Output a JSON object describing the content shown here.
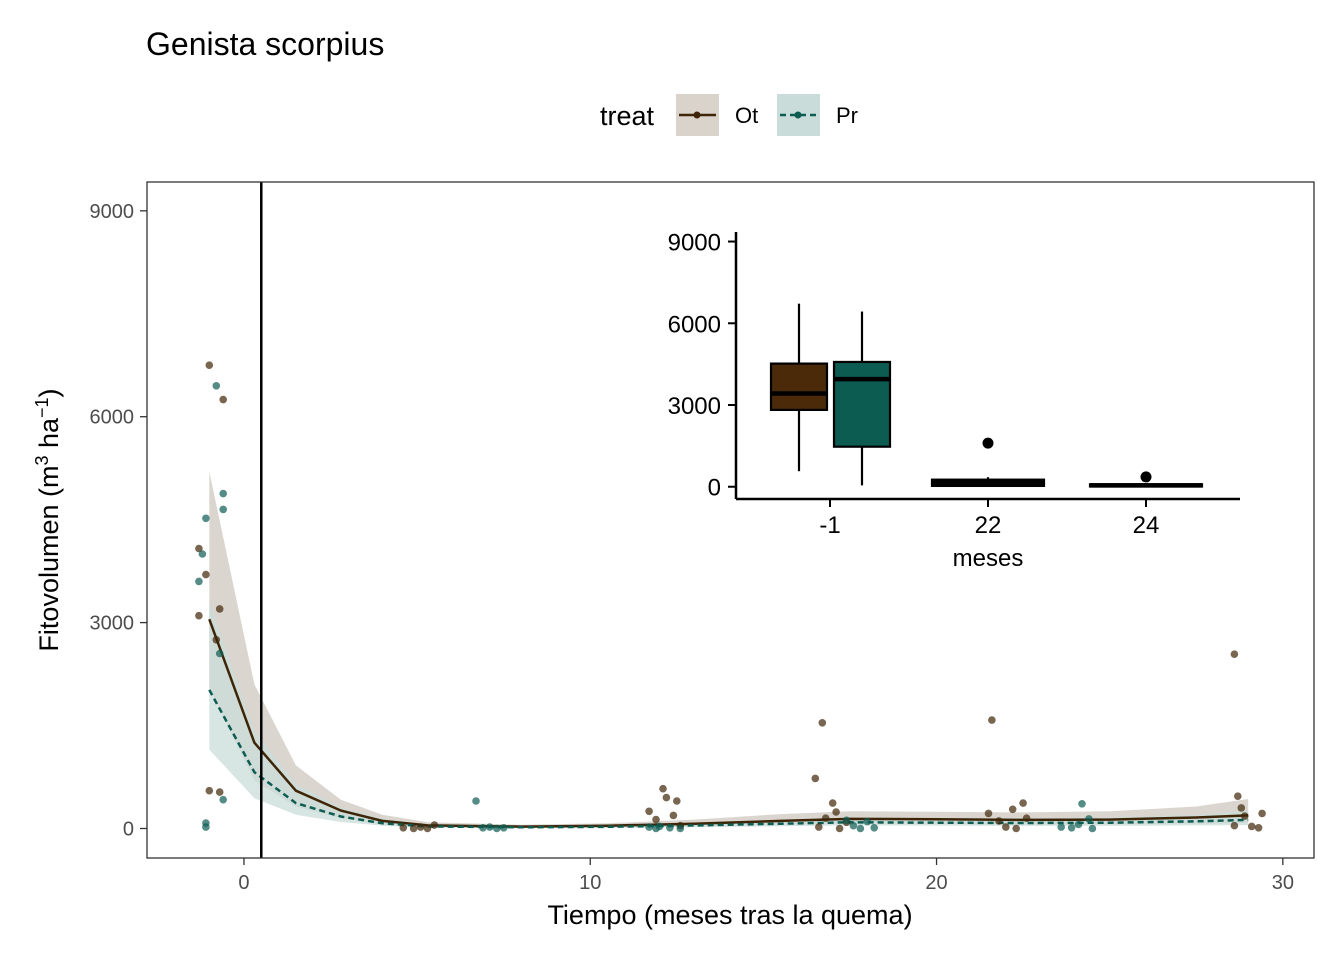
{
  "chart_data": {
    "type": "scatter",
    "title": "Genista scorpius",
    "xlabel": "Tiempo (meses tras la quema)",
    "ylabel_main": "Fitovolumen (m",
    "ylabel_sup1": "3",
    "ylabel_mid": " ha",
    "ylabel_sup2": "−1",
    "ylabel_end": ")",
    "xlim": [
      -2.8,
      30.9
    ],
    "ylim": [
      -430,
      9420
    ],
    "xticks": [
      0,
      10,
      20,
      30
    ],
    "yticks": [
      0,
      3000,
      6000,
      9000
    ],
    "reference_line_x": 0.5,
    "grid": false,
    "legend": {
      "position": "top",
      "title": "treat",
      "entries": [
        {
          "label": "Ot",
          "color": "#3f2507",
          "linestyle": "solid"
        },
        {
          "label": "Pr",
          "color": "#0d5c52",
          "linestyle": "dashed"
        }
      ]
    },
    "series": [
      {
        "name": "Ot",
        "color": "#3f2507",
        "fill": "#d9d3cc",
        "points": [
          {
            "x": -1.3,
            "y": 4080
          },
          {
            "x": -1.1,
            "y": 3700
          },
          {
            "x": -1.3,
            "y": 3100
          },
          {
            "x": -1.0,
            "y": 6750
          },
          {
            "x": -0.6,
            "y": 6250
          },
          {
            "x": -0.7,
            "y": 3200
          },
          {
            "x": -0.8,
            "y": 2750
          },
          {
            "x": -1.0,
            "y": 550
          },
          {
            "x": -0.7,
            "y": 530
          },
          {
            "x": 4.6,
            "y": 10
          },
          {
            "x": 4.9,
            "y": 0
          },
          {
            "x": 5.1,
            "y": 20
          },
          {
            "x": 5.3,
            "y": 0
          },
          {
            "x": 5.5,
            "y": 50
          },
          {
            "x": 11.7,
            "y": 250
          },
          {
            "x": 11.9,
            "y": 130
          },
          {
            "x": 12.1,
            "y": 580
          },
          {
            "x": 12.2,
            "y": 450
          },
          {
            "x": 12.5,
            "y": 400
          },
          {
            "x": 12.4,
            "y": 190
          },
          {
            "x": 12.6,
            "y": 40
          },
          {
            "x": 16.5,
            "y": 730
          },
          {
            "x": 16.7,
            "y": 1540
          },
          {
            "x": 16.6,
            "y": 20
          },
          {
            "x": 16.8,
            "y": 150
          },
          {
            "x": 17.0,
            "y": 370
          },
          {
            "x": 17.2,
            "y": 0
          },
          {
            "x": 17.4,
            "y": 90
          },
          {
            "x": 17.1,
            "y": 240
          },
          {
            "x": 21.6,
            "y": 1580
          },
          {
            "x": 21.5,
            "y": 220
          },
          {
            "x": 21.8,
            "y": 110
          },
          {
            "x": 22.0,
            "y": 20
          },
          {
            "x": 22.2,
            "y": 280
          },
          {
            "x": 22.3,
            "y": 0
          },
          {
            "x": 22.5,
            "y": 370
          },
          {
            "x": 22.6,
            "y": 150
          },
          {
            "x": 28.6,
            "y": 2540
          },
          {
            "x": 28.7,
            "y": 470
          },
          {
            "x": 28.8,
            "y": 300
          },
          {
            "x": 28.9,
            "y": 180
          },
          {
            "x": 29.1,
            "y": 30
          },
          {
            "x": 29.3,
            "y": 10
          },
          {
            "x": 29.4,
            "y": 220
          },
          {
            "x": 28.6,
            "y": 40
          }
        ],
        "fit": [
          {
            "x": -1.0,
            "y": 3050
          },
          {
            "x": 0.3,
            "y": 1250
          },
          {
            "x": 1.5,
            "y": 550
          },
          {
            "x": 2.8,
            "y": 260
          },
          {
            "x": 4.0,
            "y": 110
          },
          {
            "x": 5.3,
            "y": 45
          },
          {
            "x": 8.0,
            "y": 28
          },
          {
            "x": 10.5,
            "y": 40
          },
          {
            "x": 13.0,
            "y": 70
          },
          {
            "x": 15.5,
            "y": 110
          },
          {
            "x": 17.5,
            "y": 140
          },
          {
            "x": 20.0,
            "y": 135
          },
          {
            "x": 22.5,
            "y": 125
          },
          {
            "x": 25.0,
            "y": 130
          },
          {
            "x": 27.5,
            "y": 160
          },
          {
            "x": 29.0,
            "y": 190
          }
        ],
        "band": [
          {
            "x": -1.0,
            "lo": 2050,
            "hi": 5200
          },
          {
            "x": 0.3,
            "lo": 700,
            "hi": 2100
          },
          {
            "x": 1.5,
            "lo": 320,
            "hi": 920
          },
          {
            "x": 2.8,
            "lo": 150,
            "hi": 420
          },
          {
            "x": 4.0,
            "lo": 60,
            "hi": 200
          },
          {
            "x": 5.3,
            "lo": 20,
            "hi": 90
          },
          {
            "x": 8.0,
            "lo": 8,
            "hi": 55
          },
          {
            "x": 10.5,
            "lo": 15,
            "hi": 75
          },
          {
            "x": 13.0,
            "lo": 30,
            "hi": 130
          },
          {
            "x": 15.5,
            "lo": 55,
            "hi": 210
          },
          {
            "x": 17.5,
            "lo": 75,
            "hi": 250
          },
          {
            "x": 20.0,
            "lo": 70,
            "hi": 245
          },
          {
            "x": 22.5,
            "lo": 60,
            "hi": 235
          },
          {
            "x": 25.0,
            "lo": 60,
            "hi": 250
          },
          {
            "x": 27.5,
            "lo": 70,
            "hi": 320
          },
          {
            "x": 29.0,
            "lo": 80,
            "hi": 430
          }
        ]
      },
      {
        "name": "Pr",
        "color": "#0d5c52",
        "fill": "#c9dcd9",
        "points": [
          {
            "x": -1.2,
            "y": 4000
          },
          {
            "x": -1.3,
            "y": 3600
          },
          {
            "x": -1.1,
            "y": 4520
          },
          {
            "x": -0.8,
            "y": 6450
          },
          {
            "x": -0.6,
            "y": 4880
          },
          {
            "x": -0.6,
            "y": 4650
          },
          {
            "x": -0.7,
            "y": 2550
          },
          {
            "x": -1.1,
            "y": 80
          },
          {
            "x": -1.1,
            "y": 20
          },
          {
            "x": -0.6,
            "y": 420
          },
          {
            "x": 6.7,
            "y": 400
          },
          {
            "x": 6.9,
            "y": 10
          },
          {
            "x": 7.1,
            "y": 20
          },
          {
            "x": 7.3,
            "y": 0
          },
          {
            "x": 7.5,
            "y": 10
          },
          {
            "x": 11.7,
            "y": 20
          },
          {
            "x": 11.9,
            "y": 0
          },
          {
            "x": 12.0,
            "y": 30
          },
          {
            "x": 12.3,
            "y": 10
          },
          {
            "x": 12.6,
            "y": 0
          },
          {
            "x": 17.6,
            "y": 40
          },
          {
            "x": 17.8,
            "y": 0
          },
          {
            "x": 18.0,
            "y": 100
          },
          {
            "x": 18.2,
            "y": 10
          },
          {
            "x": 17.4,
            "y": 120
          },
          {
            "x": 23.6,
            "y": 20
          },
          {
            "x": 23.9,
            "y": 10
          },
          {
            "x": 24.1,
            "y": 60
          },
          {
            "x": 24.2,
            "y": 360
          },
          {
            "x": 24.4,
            "y": 140
          },
          {
            "x": 24.5,
            "y": 0
          }
        ],
        "fit": [
          {
            "x": -1.0,
            "y": 2020
          },
          {
            "x": 0.3,
            "y": 820
          },
          {
            "x": 1.5,
            "y": 370
          },
          {
            "x": 2.8,
            "y": 175
          },
          {
            "x": 4.0,
            "y": 75
          },
          {
            "x": 5.3,
            "y": 30
          },
          {
            "x": 8.0,
            "y": 18
          },
          {
            "x": 10.5,
            "y": 25
          },
          {
            "x": 13.0,
            "y": 45
          },
          {
            "x": 15.5,
            "y": 70
          },
          {
            "x": 17.5,
            "y": 90
          },
          {
            "x": 20.0,
            "y": 85
          },
          {
            "x": 22.5,
            "y": 80
          },
          {
            "x": 25.0,
            "y": 85
          },
          {
            "x": 27.5,
            "y": 105
          },
          {
            "x": 29.0,
            "y": 125
          }
        ],
        "band": [
          {
            "x": -1.0,
            "lo": 1150,
            "hi": 3300
          },
          {
            "x": 0.3,
            "lo": 440,
            "hi": 1420
          },
          {
            "x": 1.5,
            "lo": 200,
            "hi": 650
          },
          {
            "x": 2.8,
            "lo": 95,
            "hi": 300
          },
          {
            "x": 4.0,
            "lo": 40,
            "hi": 140
          },
          {
            "x": 5.3,
            "lo": 12,
            "hi": 60
          },
          {
            "x": 8.0,
            "lo": 5,
            "hi": 38
          },
          {
            "x": 10.5,
            "lo": 8,
            "hi": 50
          },
          {
            "x": 13.0,
            "lo": 18,
            "hi": 85
          },
          {
            "x": 15.5,
            "lo": 32,
            "hi": 130
          },
          {
            "x": 17.5,
            "lo": 45,
            "hi": 160
          },
          {
            "x": 20.0,
            "lo": 42,
            "hi": 155
          },
          {
            "x": 22.5,
            "lo": 38,
            "hi": 150
          },
          {
            "x": 25.0,
            "lo": 38,
            "hi": 160
          },
          {
            "x": 27.5,
            "lo": 45,
            "hi": 200
          },
          {
            "x": 29.0,
            "lo": 50,
            "hi": 260
          }
        ]
      }
    ],
    "inset": {
      "type": "boxplot",
      "xlabel": "meses",
      "categories": [
        "-1",
        "22",
        "24"
      ],
      "yticks": [
        0,
        3000,
        6000,
        9000
      ],
      "ylim": [
        -450,
        9350
      ],
      "boxes": [
        {
          "category": "-1",
          "group": "Ot",
          "color": "#4a2a09",
          "min": 570,
          "q1": 2820,
          "median": 3420,
          "q3": 4520,
          "max": 6720,
          "outliers": []
        },
        {
          "category": "-1",
          "group": "Pr",
          "color": "#0d5c52",
          "min": 50,
          "q1": 1470,
          "median": 3950,
          "q3": 4580,
          "max": 6430,
          "outliers": []
        },
        {
          "category": "22",
          "group": "all",
          "color": "#000000",
          "min": 0,
          "q1": 30,
          "median": 120,
          "q3": 260,
          "max": 350,
          "outliers": [
            1600
          ]
        },
        {
          "category": "24",
          "group": "all",
          "color": "#000000",
          "min": 0,
          "q1": 10,
          "median": 50,
          "q3": 90,
          "max": 130,
          "outliers": [
            360
          ]
        }
      ]
    }
  }
}
